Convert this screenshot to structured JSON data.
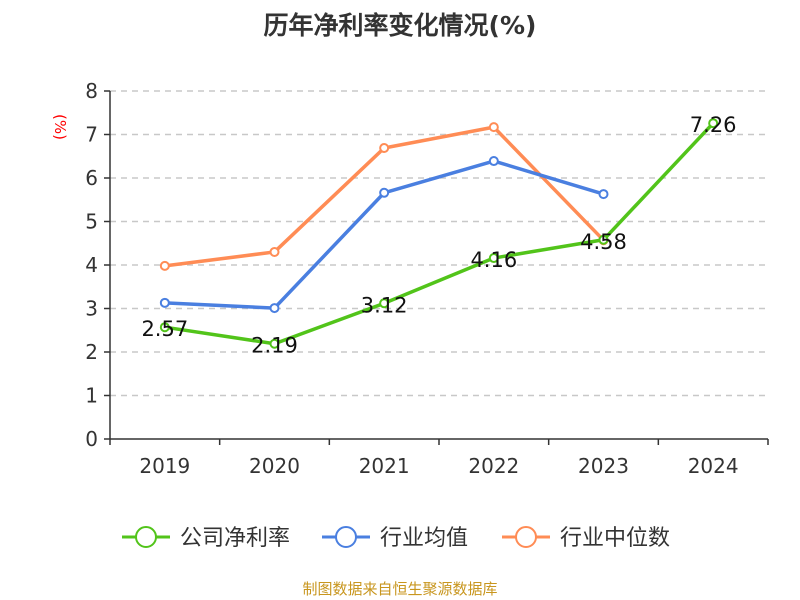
{
  "title": "历年净利率变化情况(%)",
  "source": "制图数据来自恒生聚源数据库",
  "chart_data": {
    "type": "line",
    "title": "历年净利率变化情况(%)",
    "ylabel": "(%)",
    "ylabel_color": "#ff0000",
    "categories": [
      "2019",
      "2020",
      "2021",
      "2022",
      "2023",
      "2024"
    ],
    "ylim": [
      0,
      8
    ],
    "yticks": [
      0,
      1,
      2,
      3,
      4,
      5,
      6,
      7,
      8
    ],
    "grid": true,
    "legend_position": "bottom",
    "series": [
      {
        "name": "公司净利率",
        "color": "#52c41a",
        "values": [
          2.57,
          2.19,
          3.12,
          4.16,
          4.58,
          7.26
        ],
        "labels": true
      },
      {
        "name": "行业均值",
        "color": "#4a7fe0",
        "values": [
          3.13,
          3.01,
          5.66,
          6.39,
          5.63,
          null
        ],
        "labels": false
      },
      {
        "name": "行业中位数",
        "color": "#ff8c55",
        "values": [
          3.98,
          4.3,
          6.69,
          7.17,
          4.57,
          null
        ],
        "labels": false
      }
    ]
  }
}
